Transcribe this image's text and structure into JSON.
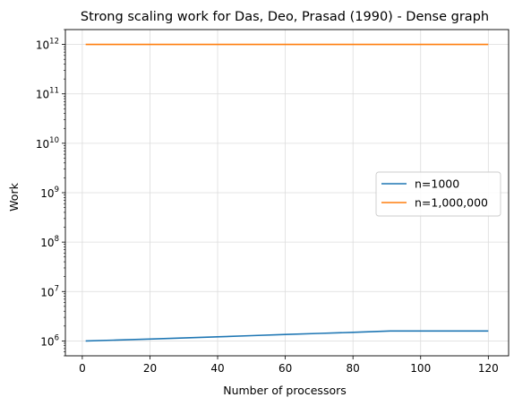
{
  "chart_data": {
    "type": "line",
    "title": "Strong scaling work for Das, Deo, Prasad  (1990) - Dense graph",
    "xlabel": "Number of processors",
    "ylabel": "Work",
    "xlim": [
      -5,
      126
    ],
    "ylim": [
      500000,
      2000000000000
    ],
    "yscale": "log",
    "grid": true,
    "legend_position": "center-right",
    "x_ticks": [
      0,
      20,
      40,
      60,
      80,
      100,
      120
    ],
    "y_ticks": [
      {
        "value": 1000000,
        "base": "10",
        "exp": "6"
      },
      {
        "value": 10000000,
        "base": "10",
        "exp": "7"
      },
      {
        "value": 100000000,
        "base": "10",
        "exp": "8"
      },
      {
        "value": 1000000000,
        "base": "10",
        "exp": "9"
      },
      {
        "value": 10000000000,
        "base": "10",
        "exp": "10"
      },
      {
        "value": 100000000000,
        "base": "10",
        "exp": "11"
      },
      {
        "value": 1000000000000,
        "base": "10",
        "exp": "12"
      }
    ],
    "series": [
      {
        "name": "n=1000",
        "color": "#1f77b4",
        "x": [
          1,
          10,
          20,
          30,
          40,
          50,
          60,
          70,
          80,
          91,
          100,
          110,
          120
        ],
        "y": [
          1000000,
          1040000,
          1090000,
          1150000,
          1210000,
          1280000,
          1350000,
          1420000,
          1490000,
          1590000,
          1590000,
          1590000,
          1590000
        ]
      },
      {
        "name": "n=1,000,000",
        "color": "#ff7f0e",
        "x": [
          1,
          120
        ],
        "y": [
          1000000000000,
          1000000000000
        ]
      }
    ]
  }
}
